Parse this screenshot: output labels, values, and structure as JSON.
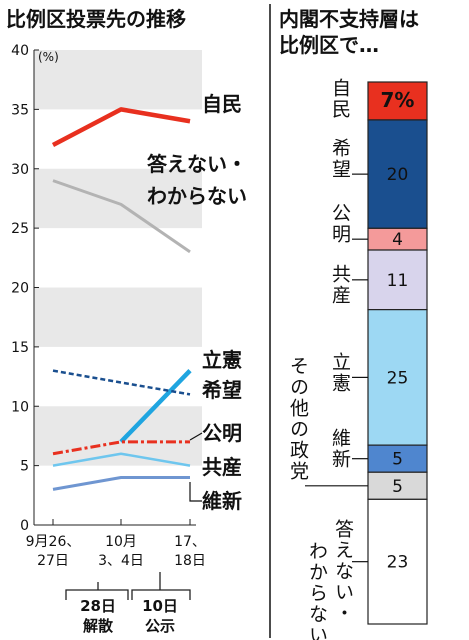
{
  "chart_data": [
    {
      "type": "line",
      "title": "比例区投票先の推移",
      "ylabel": "(%)",
      "ylim": [
        0,
        40
      ],
      "yticks": [
        0,
        5,
        10,
        15,
        20,
        25,
        30,
        35,
        40
      ],
      "categories": [
        {
          "lines": [
            "9月26、",
            "27日"
          ]
        },
        {
          "lines": [
            "10月",
            "3、4日"
          ]
        },
        {
          "lines": [
            "17、",
            "18日"
          ]
        }
      ],
      "series": [
        {
          "name": "自民",
          "values": [
            32,
            35,
            34
          ],
          "color": "#e8301f",
          "style": "solid"
        },
        {
          "name": "答えない・わからない",
          "name_lines": [
            "答えない・",
            "わからない"
          ],
          "values": [
            29,
            27,
            23
          ],
          "color": "#b3b3b3",
          "style": "solid"
        },
        {
          "name": "立憲",
          "values": [
            null,
            7,
            13
          ],
          "color": "#1fa5e0",
          "style": "solid"
        },
        {
          "name": "希望",
          "values": [
            13,
            12,
            11
          ],
          "color": "#1a4f8f",
          "style": "dashed"
        },
        {
          "name": "公明",
          "values": [
            6,
            7,
            7
          ],
          "color": "#e8301f",
          "style": "dashdot"
        },
        {
          "name": "共産",
          "values": [
            5,
            6,
            5
          ],
          "color": "#6ec6ee",
          "style": "solid"
        },
        {
          "name": "維新",
          "values": [
            3,
            4,
            4
          ],
          "color": "#6f96d1",
          "style": "solid"
        }
      ],
      "events": [
        {
          "lines": [
            "28日",
            "解散"
          ]
        },
        {
          "lines": [
            "10日",
            "公示"
          ]
        }
      ],
      "grid": "alternating bands"
    },
    {
      "type": "bar",
      "title": "内閣不支持層は比例区で…",
      "title_lines": [
        "内閣不支持層は",
        "比例区で…"
      ],
      "stacked": true,
      "unit": "%",
      "segments": [
        {
          "name": "自民",
          "value": 7,
          "label": "7%",
          "color": "#e8301f",
          "text_color": "#ffffff"
        },
        {
          "name": "希望",
          "value": 20,
          "label": "20",
          "color": "#1a4f8f",
          "text_color": "#ffffff"
        },
        {
          "name": "公明",
          "value": 4,
          "label": "4",
          "color": "#f49a9a",
          "text_color": "#111111"
        },
        {
          "name": "共産",
          "value": 11,
          "label": "11",
          "color": "#d8d4ec",
          "text_color": "#111111"
        },
        {
          "name": "立憲",
          "value": 25,
          "label": "25",
          "color": "#9dd8f3",
          "text_color": "#111111"
        },
        {
          "name": "維新",
          "value": 5,
          "label": "5",
          "color": "#4f86cf",
          "text_color": "#ffffff"
        },
        {
          "name": "その他の政党",
          "value": 5,
          "label": "5",
          "color": "#d9d9d9",
          "text_color": "#111111"
        },
        {
          "name": "答えない・わからない",
          "value": 23,
          "label": "23",
          "color": "#ffffff",
          "text_color": "#111111"
        }
      ],
      "side_labels": [
        {
          "for": "自民",
          "text": "自民",
          "columns": 1
        },
        {
          "for": "希望",
          "text": "希望",
          "columns": 1
        },
        {
          "for": "公明",
          "text": "公明",
          "columns": 1
        },
        {
          "for": "共産",
          "text": "共産",
          "columns": 1
        },
        {
          "for": "立憲",
          "text": "立憲",
          "columns": 1
        },
        {
          "for": "維新",
          "text": "維新",
          "columns": 1
        },
        {
          "for": "その他の政党",
          "text": "その他の政党",
          "columns": 1
        },
        {
          "for": "答えない・わからない",
          "text": "答えない・わからない",
          "columns": 2
        }
      ]
    }
  ]
}
